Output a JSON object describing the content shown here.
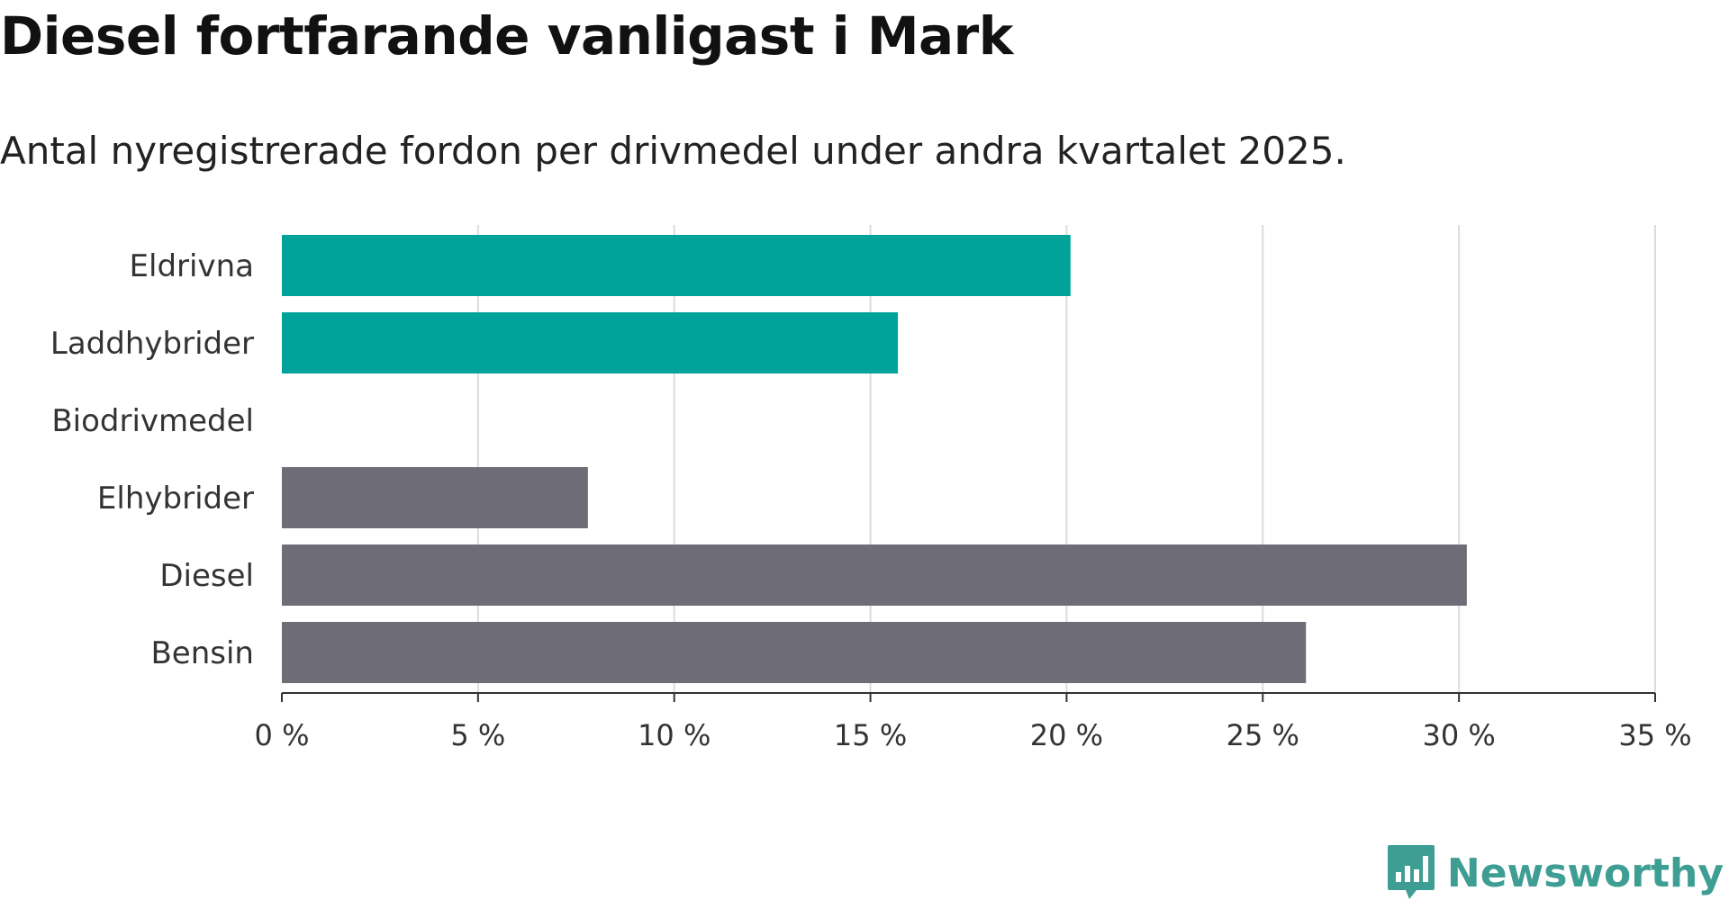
{
  "title": "Diesel fortfarande vanligast i Mark",
  "subtitle": "Antal nyregistrerade fordon per drivmedel under andra kvartalet 2025.",
  "brand": {
    "name": "Newsworthy",
    "icon": "newsworthy-logo-icon",
    "color": "#3f9e93"
  },
  "chart_data": {
    "type": "bar",
    "orientation": "horizontal",
    "categories": [
      "Eldrivna",
      "Laddhybrider",
      "Biodrivmedel",
      "Elhybrider",
      "Diesel",
      "Bensin"
    ],
    "values": [
      20.1,
      15.7,
      0,
      7.8,
      30.2,
      26.1
    ],
    "colors": [
      "#00a39a",
      "#00a39a",
      "#00a39a",
      "#6e6d77",
      "#6e6d77",
      "#6e6d77"
    ],
    "xlim": [
      0,
      35
    ],
    "xticks": [
      0,
      5,
      10,
      15,
      20,
      25,
      30,
      35
    ],
    "xtick_labels": [
      "0 %",
      "5 %",
      "10 %",
      "15 %",
      "20 %",
      "25 %",
      "30 %",
      "35 %"
    ],
    "grid": true,
    "colors_legend": {
      "highlight": "#00a39a",
      "default": "#6e6d77"
    }
  }
}
